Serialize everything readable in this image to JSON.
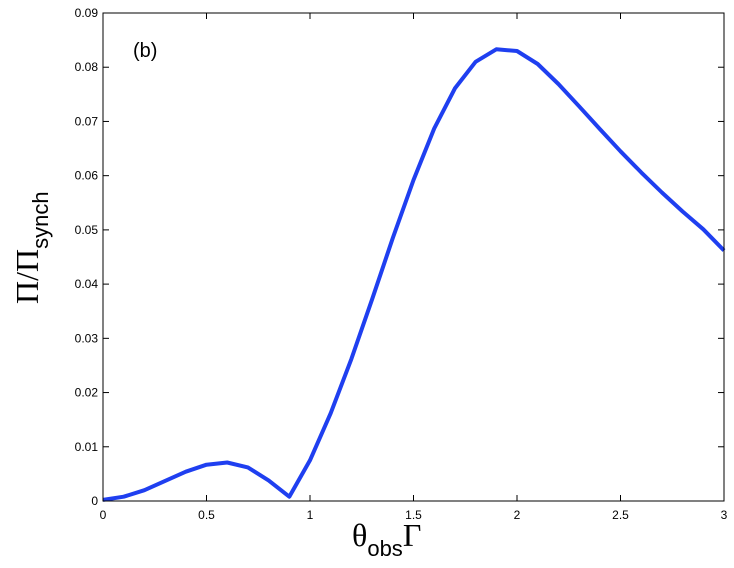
{
  "chart_data": {
    "type": "line",
    "title": "",
    "annotation": "(b)",
    "xlabel": {
      "main": "θ",
      "subscript": "obs",
      "suffix": "Γ"
    },
    "ylabel": {
      "main": "Π/Π",
      "subscript": "synch"
    },
    "xlim": [
      0,
      3
    ],
    "ylim": [
      0,
      0.09
    ],
    "xticks": [
      0,
      0.5,
      1,
      1.5,
      2,
      2.5,
      3
    ],
    "xtick_labels": [
      "0",
      "0.5",
      "1",
      "1.5",
      "2",
      "2.5",
      "3"
    ],
    "yticks": [
      0,
      0.01,
      0.02,
      0.03,
      0.04,
      0.05,
      0.06,
      0.07,
      0.08,
      0.09
    ],
    "ytick_labels": [
      "0",
      "0.01",
      "0.02",
      "0.03",
      "0.04",
      "0.05",
      "0.06",
      "0.07",
      "0.08",
      "0.09"
    ],
    "grid": false,
    "series": [
      {
        "color": "#1f3ff0",
        "x": [
          0,
          0.1,
          0.2,
          0.3,
          0.4,
          0.5,
          0.6,
          0.7,
          0.8,
          0.9,
          1.0,
          1.1,
          1.2,
          1.3,
          1.4,
          1.5,
          1.6,
          1.7,
          1.8,
          1.9,
          2.0,
          2.1,
          2.2,
          2.3,
          2.4,
          2.5,
          2.6,
          2.7,
          2.8,
          2.9,
          3.0
        ],
        "y": [
          0.0002,
          0.0008,
          0.002,
          0.0037,
          0.0054,
          0.0067,
          0.0071,
          0.0062,
          0.0038,
          0.0008,
          0.0075,
          0.0162,
          0.0262,
          0.0372,
          0.0485,
          0.0592,
          0.0687,
          0.0761,
          0.081,
          0.0833,
          0.083,
          0.0806,
          0.0769,
          0.0728,
          0.0686,
          0.0645,
          0.0606,
          0.0569,
          0.0534,
          0.0501,
          0.0462
        ]
      }
    ]
  }
}
